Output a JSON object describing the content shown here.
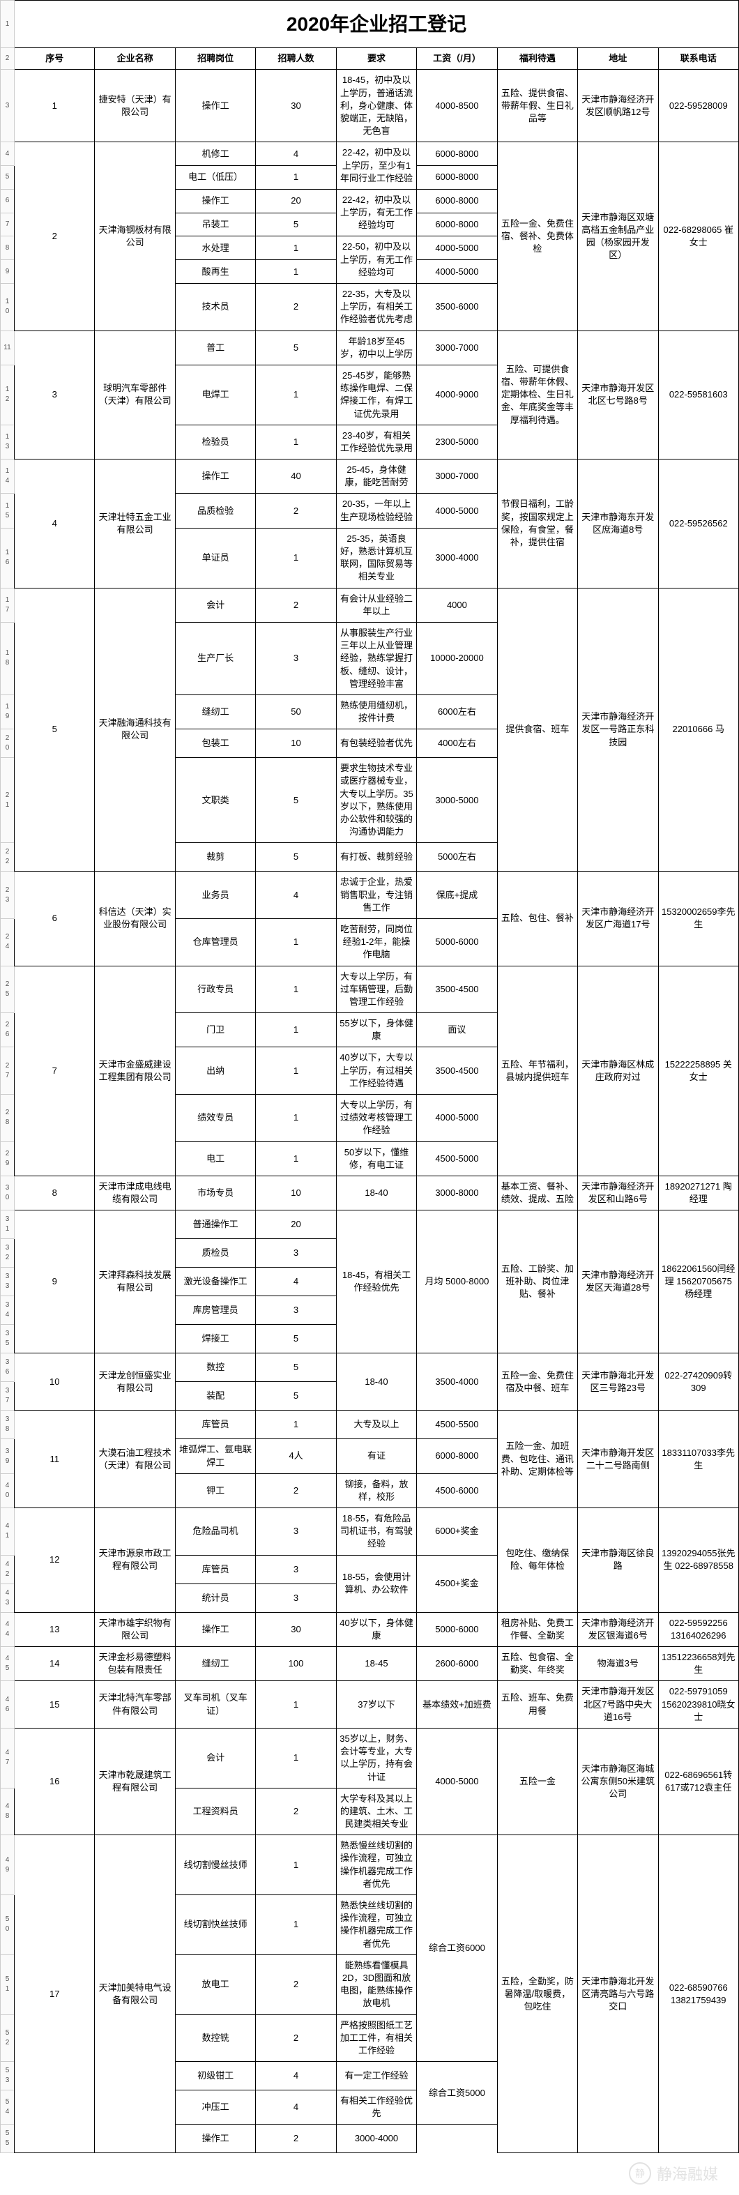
{
  "title": "2020年企业招工登记",
  "headers": {
    "no": "序号",
    "company": "企业名称",
    "position": "招聘岗位",
    "count": "招聘人数",
    "req": "要求",
    "salary": "工资（/月）",
    "benefit": "福利待遇",
    "addr": "地址",
    "tel": "联系电话"
  },
  "colors": {
    "border": "#000000",
    "row_label_bg": "#fafafa",
    "row_label_fg": "#555555"
  },
  "watermark": "静海融媒",
  "companies": [
    {
      "no": "1",
      "name": "捷安特（天津）有限公司",
      "benefit": "五险、提供食宿、带薪年假、生日礼品等",
      "addr": "天津市静海经济开发区顺帆路12号",
      "tel": "022-59528009",
      "rows": [
        {
          "pos": "操作工",
          "cnt": "30",
          "req": "18-45，初中及以上学历，普通话流利，身心健康、体貌端正，无缺陷，无色盲",
          "sal": "4000-8500"
        }
      ],
      "row_idx": [
        3
      ]
    },
    {
      "no": "2",
      "name": "天津海钢板材有限公司",
      "benefit": "五险一金、免费住宿、餐补、免费体检",
      "addr": "天津市静海区双塘高档五金制品产业园（杨家园开发区）",
      "tel": "022-68298065 崔女士",
      "rows": [
        {
          "pos": "机修工",
          "cnt": "4",
          "req_span_start": true,
          "req": "22-42，初中及以上学历，至少有1年同行业工作经验",
          "sal": "6000-8000"
        },
        {
          "pos": "电工（低压）",
          "cnt": "1",
          "sal": "6000-8000"
        },
        {
          "pos": "操作工",
          "cnt": "20",
          "req_span_start2": true,
          "req": "22-42，初中及以上学历，有无工作经验均可",
          "sal": "6000-8000"
        },
        {
          "pos": "吊装工",
          "cnt": "5",
          "sal": "6000-8000"
        },
        {
          "pos": "水处理",
          "cnt": "1",
          "req_span_start3": true,
          "req": "22-50，初中及以上学历，有无工作经验均可",
          "sal": "4000-5000"
        },
        {
          "pos": "酸再生",
          "cnt": "1",
          "sal": "4000-5000"
        },
        {
          "pos": "技术员",
          "cnt": "2",
          "req": "22-35，大专及以上学历，有相关工作经验者优先考虑",
          "sal": "3500-6000"
        }
      ],
      "row_idx": [
        4,
        5,
        6,
        7,
        8,
        9,
        10
      ]
    },
    {
      "no": "3",
      "name": "球明汽车零部件（天津）有限公司",
      "benefit": "五险、可提供食宿、带薪年休假、定期体检、生日礼金、年底奖金等丰厚福利待遇。",
      "addr": "天津市静海开发区北区七号路8号",
      "tel": "022-59581603",
      "rows": [
        {
          "pos": "普工",
          "cnt": "5",
          "req": "年龄18岁至45岁，初中以上学历",
          "sal": "3000-7000"
        },
        {
          "pos": "电焊工",
          "cnt": "1",
          "req": "25-45岁，能够熟练操作电焊、二保焊接工作，有焊工证优先录用",
          "sal": "4000-9000"
        },
        {
          "pos": "检验员",
          "cnt": "1",
          "req": "23-40岁，有相关工作经验优先录用",
          "sal": "2300-5000"
        }
      ],
      "row_idx": [
        11,
        12,
        13
      ]
    },
    {
      "no": "4",
      "name": "天津壮特五金工业有限公司",
      "benefit": "节假日福利，工龄奖，按国家规定上保险，有食堂，餐补，提供住宿",
      "addr": "天津市静海东开发区庶海道8号",
      "tel": "022-59526562",
      "rows": [
        {
          "pos": "操作工",
          "cnt": "40",
          "req": "25-45，身体健康，能吃苦耐劳",
          "sal": "3000-7000"
        },
        {
          "pos": "品质检验",
          "cnt": "2",
          "req": "20-35，一年以上生产现场检验经验",
          "sal": "4000-5000"
        },
        {
          "pos": "单证员",
          "cnt": "1",
          "req": "25-35，英语良好，熟悉计算机互联网，国际贸易等相关专业",
          "sal": "3000-4000"
        }
      ],
      "row_idx": [
        14,
        15,
        16
      ]
    },
    {
      "no": "5",
      "name": "天津融海通科技有限公司",
      "benefit": "提供食宿、班车",
      "addr": "天津市静海经济开发区一号路正东科技园",
      "tel": "22010666 马",
      "rows": [
        {
          "pos": "会计",
          "cnt": "2",
          "req": "有会计从业经验二年以上",
          "sal": "4000"
        },
        {
          "pos": "生产厂长",
          "cnt": "3",
          "req": "从事服装生产行业三年以上从业管理经验，熟练掌握打板、缝纫、设计，管理经验丰富",
          "sal": "10000-20000"
        },
        {
          "pos": "缝纫工",
          "cnt": "50",
          "req": "熟练使用缝纫机，按件计费",
          "sal": "6000左右"
        },
        {
          "pos": "包装工",
          "cnt": "10",
          "req": "有包装经验者优先",
          "sal": "4000左右"
        },
        {
          "pos": "文职类",
          "cnt": "5",
          "req": "要求生物技术专业或医疗器械专业，大专以上学历。35岁以下，熟练使用办公软件和较强的沟通协调能力",
          "sal": "3000-5000"
        },
        {
          "pos": "裁剪",
          "cnt": "5",
          "req": "有打板、裁剪经验",
          "sal": "5000左右"
        }
      ],
      "row_idx": [
        17,
        18,
        19,
        20,
        21,
        22
      ]
    },
    {
      "no": "6",
      "name": "科信达（天津）实业股份有限公司",
      "benefit": "五险、包住、餐补",
      "addr": "天津市静海经济开发区广海道17号",
      "tel": "15320002659李先生",
      "rows": [
        {
          "pos": "业务员",
          "cnt": "4",
          "req": "忠诚于企业，热爱销售职业，专注销售工作",
          "sal": "保底+提成"
        },
        {
          "pos": "仓库管理员",
          "cnt": "1",
          "req": "吃苦耐劳，同岗位经验1-2年，能操作电脑",
          "sal": "5000-6000"
        }
      ],
      "row_idx": [
        23,
        24
      ]
    },
    {
      "no": "7",
      "name": "天津市金盛威建设工程集团有限公司",
      "benefit": "五险、年节福利，县城内提供班车",
      "addr": "天津市静海区林成庄政府对过",
      "tel": "15222258895 关女士",
      "rows": [
        {
          "pos": "行政专员",
          "cnt": "1",
          "req": "大专以上学历，有过车辆管理，后勤管理工作经验",
          "sal": "3500-4500"
        },
        {
          "pos": "门卫",
          "cnt": "1",
          "req": "55岁以下，身体健康",
          "sal": "面议"
        },
        {
          "pos": "出纳",
          "cnt": "1",
          "req": "40岁以下，大专以上学历，有过相关工作经验待遇",
          "sal": "3500-4500"
        },
        {
          "pos": "绩效专员",
          "cnt": "1",
          "req": "大专以上学历，有过绩效考核管理工作经验",
          "sal": "4000-5000"
        },
        {
          "pos": "电工",
          "cnt": "1",
          "req": "50岁以下，懂维修，有电工证",
          "sal": "4500-5000"
        }
      ],
      "row_idx": [
        25,
        26,
        27,
        28,
        29
      ]
    },
    {
      "no": "8",
      "name": "天津市津成电线电缆有限公司",
      "benefit": "基本工资、餐补、绩效、提成、五险",
      "addr": "天津市静海经济开发区和山路6号",
      "tel": "18920271271 陶经理",
      "rows": [
        {
          "pos": "市场专员",
          "cnt": "10",
          "req": "18-40",
          "sal": "3000-8000"
        }
      ],
      "row_idx": [
        30
      ]
    },
    {
      "no": "9",
      "name": "天津拜森科技发展有限公司",
      "benefit": "五险、工龄奖、加班补助、岗位津贴、餐补",
      "addr": "天津市静海经济开发区天海道28号",
      "tel": "18622061560闫经理 15620705675杨经理",
      "rows": [
        {
          "pos": "普通操作工",
          "cnt": "20",
          "req_rowspan": 5,
          "req": "18-45，有相关工作经验优先",
          "sal_rowspan": 5,
          "sal": "月均 5000-8000"
        },
        {
          "pos": "质检员",
          "cnt": "3"
        },
        {
          "pos": "激光设备操作工",
          "cnt": "4"
        },
        {
          "pos": "库房管理员",
          "cnt": "3"
        },
        {
          "pos": "焊接工",
          "cnt": "5"
        }
      ],
      "row_idx": [
        31,
        32,
        33,
        34,
        35
      ]
    },
    {
      "no": "10",
      "name": "天津龙创恒盛实业有限公司",
      "benefit": "五险一金、免费住宿及中餐、班车",
      "addr": "天津市静海北开发区三号路23号",
      "tel": "022-27420909转309",
      "rows": [
        {
          "pos": "数控",
          "cnt": "5",
          "req_rowspan": 2,
          "req": "18-40",
          "sal_rowspan": 2,
          "sal": "3500-4000"
        },
        {
          "pos": "装配",
          "cnt": "5"
        }
      ],
      "row_idx": [
        36,
        37
      ]
    },
    {
      "no": "11",
      "name": "大漠石油工程技术（天津）有限公司",
      "benefit": "五险一金、加班费、包吃住、通讯补助、定期体检等",
      "addr": "天津市静海开发区二十二号路南侧",
      "tel": "18331107033李先生",
      "rows": [
        {
          "pos": "库管员",
          "cnt": "1",
          "req": "大专及以上",
          "sal": "4500-5500"
        },
        {
          "pos": "堆弧焊工、氩电联焊工",
          "cnt": "4人",
          "req": "有证",
          "sal": "6000-8000"
        },
        {
          "pos": "钾工",
          "cnt": "2",
          "req": "铆接，备料，放样，校形",
          "sal": "4500-6000"
        }
      ],
      "row_idx": [
        38,
        39,
        40
      ]
    },
    {
      "no": "12",
      "name": "天津市源泉市政工程有限公司",
      "benefit": "包吃住、缴纳保险、每年体检",
      "addr": "天津市静海区徐良路",
      "tel": "13920294055张先生 022-68978558",
      "rows": [
        {
          "pos": "危险品司机",
          "cnt": "3",
          "req": "18-55，有危险品司机证书，有驾驶经验",
          "sal": "6000+奖金"
        },
        {
          "pos": "库管员",
          "cnt": "3",
          "req_rowspan": 2,
          "req": "18-55，会使用计算机、办公软件",
          "sal_rowspan": 2,
          "sal": "4500+奖金"
        },
        {
          "pos": "统计员",
          "cnt": "3"
        }
      ],
      "row_idx": [
        41,
        42,
        43
      ]
    },
    {
      "no": "13",
      "name": "天津市雄宇织物有限公司",
      "benefit": "租房补贴、免费工作餐、全勤奖",
      "addr": "天津市静海经济开发区银海道6号",
      "tel": "022-59592256 13164026296",
      "rows": [
        {
          "pos": "操作工",
          "cnt": "30",
          "req": "40岁以下，身体健康",
          "sal": "5000-6000"
        }
      ],
      "row_idx": [
        44
      ]
    },
    {
      "no": "14",
      "name": "天津金杉易德塑料包装有限责任",
      "benefit": "五险、包食宿、全勤奖、年终奖",
      "addr": "物海道3号",
      "tel": "13512236658刘先生",
      "rows": [
        {
          "pos": "缝纫工",
          "cnt": "100",
          "req": "18-45",
          "sal": "2600-6000"
        }
      ],
      "row_idx": [
        45
      ]
    },
    {
      "no": "15",
      "name": "天津北特汽车零部件有限公司",
      "benefit": "五险、班车、免费用餐",
      "addr": "天津市静海开发区北区7号路中央大道16号",
      "tel": "022-59791059 15620239810晓女士",
      "rows": [
        {
          "pos": "叉车司机（叉车证）",
          "cnt": "1",
          "req": "37岁以下",
          "sal": "基本绩效+加班费"
        }
      ],
      "row_idx": [
        46
      ]
    },
    {
      "no": "16",
      "name": "天津市乾晟建筑工程有限公司",
      "benefit": "五险一金",
      "addr": "天津市静海区海城公寓东侧50米建筑公司",
      "tel": "022-68696561转617或712袁主任",
      "rows": [
        {
          "pos": "会计",
          "cnt": "1",
          "req": "35岁以上，财务、会计等专业，大专以上学历，持有会计证",
          "sal_rowspan": 2,
          "sal": "4000-5000"
        },
        {
          "pos": "工程资料员",
          "cnt": "2",
          "req": "大学专科及其以上的建筑、土木、工民建类相关专业"
        }
      ],
      "row_idx": [
        47,
        48
      ]
    },
    {
      "no": "17",
      "name": "天津加美特电气设备有限公司",
      "benefit": "五险，全勤奖，防暑降温/取暖费，包吃住",
      "addr": "天津市静海北开发区清亮路与六号路交口",
      "tel": "022-68590766 13821759439",
      "rows": [
        {
          "pos": "线切割慢丝技师",
          "cnt": "1",
          "req": "熟悉慢丝线切割的操作流程，可独立操作机器完成工作者优先",
          "sal_rowspan": 4,
          "sal": "综合工资6000"
        },
        {
          "pos": "线切割快丝技师",
          "cnt": "1",
          "req": "熟悉快丝线切割的操作流程，可独立操作机器完成工作者优先"
        },
        {
          "pos": "放电工",
          "cnt": "2",
          "req": "能熟练看懂模具2D，3D图面和放电图，能熟练操作放电机"
        },
        {
          "pos": "数控铣",
          "cnt": "2",
          "req": "严格按照图纸工艺加工工件，有相关工作经验"
        },
        {
          "pos": "初级钳工",
          "cnt": "4",
          "req": "有一定工作经验",
          "sal_rowspan": 2,
          "sal": "综合工资5000"
        },
        {
          "pos": "冲压工",
          "cnt": "4",
          "req": "有相关工作经验优先"
        },
        {
          "pos": "操作工",
          "cnt": "2",
          "sal": "3000-4000"
        }
      ],
      "row_idx": [
        49,
        50,
        51,
        52,
        53,
        54,
        55
      ]
    }
  ]
}
